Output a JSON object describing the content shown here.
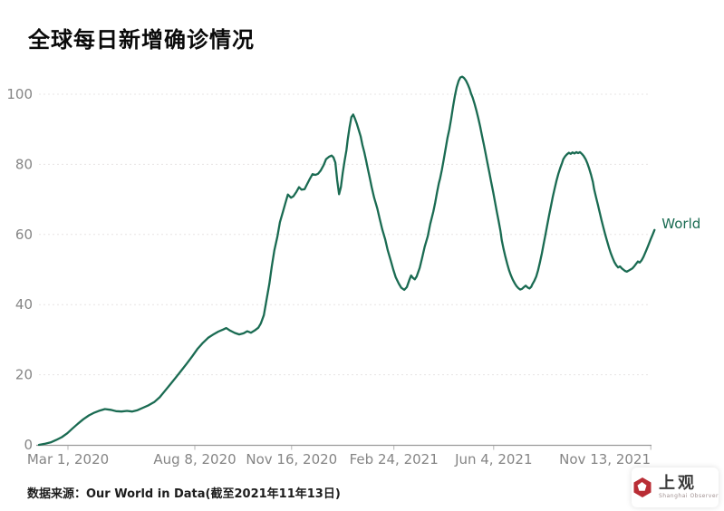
{
  "title": "全球每日新增确诊情况",
  "source_note": "数据来源：Our World in Data(截至2021年11年13日)",
  "logo": {
    "name": "上观",
    "subtitle": "Shanghai Observer",
    "color": "#b92d35"
  },
  "chart_data": {
    "type": "line",
    "title": "全球每日新增确诊情况",
    "xlabel": "",
    "ylabel": "",
    "ylim": [
      0,
      110
    ],
    "yticks": [
      0,
      20,
      40,
      60,
      80,
      100
    ],
    "grid": "horizontal-dashed",
    "legend": "end-of-line-label",
    "x_axis_ticks": [
      {
        "label": "Mar 1, 2020",
        "f": 0.047
      },
      {
        "label": "Aug 8, 2020",
        "f": 0.253
      },
      {
        "label": "Nov 16, 2020",
        "f": 0.41
      },
      {
        "label": "Feb 24, 2021",
        "f": 0.576
      },
      {
        "label": "Jun 4, 2021",
        "f": 0.738
      },
      {
        "label": "Nov 13, 2021",
        "f": 0.993
      }
    ],
    "series": [
      {
        "name": "World",
        "color": "#1a6b52",
        "points": [
          [
            0,
            0
          ],
          [
            0.01,
            0.3
          ],
          [
            0.019,
            0.7
          ],
          [
            0.028,
            1.4
          ],
          [
            0.037,
            2.2
          ],
          [
            0.046,
            3.3
          ],
          [
            0.054,
            4.6
          ],
          [
            0.063,
            6
          ],
          [
            0.072,
            7.3
          ],
          [
            0.081,
            8.4
          ],
          [
            0.09,
            9.2
          ],
          [
            0.099,
            9.8
          ],
          [
            0.107,
            10.2
          ],
          [
            0.116,
            10
          ],
          [
            0.125,
            9.6
          ],
          [
            0.134,
            9.5
          ],
          [
            0.143,
            9.7
          ],
          [
            0.151,
            9.5
          ],
          [
            0.16,
            9.9
          ],
          [
            0.169,
            10.6
          ],
          [
            0.178,
            11.3
          ],
          [
            0.187,
            12.2
          ],
          [
            0.196,
            13.6
          ],
          [
            0.204,
            15.3
          ],
          [
            0.213,
            17.2
          ],
          [
            0.222,
            19.2
          ],
          [
            0.231,
            21.2
          ],
          [
            0.24,
            23.2
          ],
          [
            0.249,
            25.3
          ],
          [
            0.257,
            27.3
          ],
          [
            0.266,
            29.1
          ],
          [
            0.275,
            30.6
          ],
          [
            0.284,
            31.6
          ],
          [
            0.291,
            32.3
          ],
          [
            0.299,
            32.9
          ],
          [
            0.304,
            33.3
          ],
          [
            0.31,
            32.6
          ],
          [
            0.318,
            31.9
          ],
          [
            0.325,
            31.5
          ],
          [
            0.332,
            31.8
          ],
          [
            0.338,
            32.4
          ],
          [
            0.344,
            32
          ],
          [
            0.35,
            32.6
          ],
          [
            0.356,
            33.4
          ],
          [
            0.36,
            34.6
          ],
          [
            0.365,
            37
          ],
          [
            0.369,
            41
          ],
          [
            0.374,
            46
          ],
          [
            0.378,
            51
          ],
          [
            0.382,
            55.5
          ],
          [
            0.387,
            59.5
          ],
          [
            0.391,
            63.5
          ],
          [
            0.396,
            66.5
          ],
          [
            0.4,
            69
          ],
          [
            0.404,
            71.4
          ],
          [
            0.409,
            70.5
          ],
          [
            0.413,
            70.9
          ],
          [
            0.418,
            72.2
          ],
          [
            0.422,
            73.5
          ],
          [
            0.426,
            72.8
          ],
          [
            0.431,
            72.9
          ],
          [
            0.435,
            74.3
          ],
          [
            0.44,
            76
          ],
          [
            0.444,
            77.2
          ],
          [
            0.449,
            77
          ],
          [
            0.453,
            77.3
          ],
          [
            0.457,
            78.2
          ],
          [
            0.462,
            79.8
          ],
          [
            0.466,
            81.5
          ],
          [
            0.471,
            82.2
          ],
          [
            0.475,
            82.5
          ],
          [
            0.478,
            82
          ],
          [
            0.481,
            80.5
          ],
          [
            0.484,
            75.5
          ],
          [
            0.487,
            71.5
          ],
          [
            0.49,
            73.5
          ],
          [
            0.493,
            77.5
          ],
          [
            0.496,
            81
          ],
          [
            0.499,
            84
          ],
          [
            0.501,
            87
          ],
          [
            0.504,
            90.5
          ],
          [
            0.507,
            93.5
          ],
          [
            0.51,
            94.2
          ],
          [
            0.513,
            93
          ],
          [
            0.516,
            91.5
          ],
          [
            0.519,
            89.8
          ],
          [
            0.522,
            88
          ],
          [
            0.525,
            85.5
          ],
          [
            0.528,
            83.5
          ],
          [
            0.531,
            81
          ],
          [
            0.534,
            78.5
          ],
          [
            0.537,
            76
          ],
          [
            0.54,
            73.5
          ],
          [
            0.544,
            70.5
          ],
          [
            0.549,
            67.5
          ],
          [
            0.553,
            64.5
          ],
          [
            0.557,
            61.5
          ],
          [
            0.562,
            58.5
          ],
          [
            0.566,
            55.5
          ],
          [
            0.571,
            52.5
          ],
          [
            0.575,
            50
          ],
          [
            0.579,
            47.8
          ],
          [
            0.584,
            46
          ],
          [
            0.588,
            44.8
          ],
          [
            0.593,
            44.2
          ],
          [
            0.597,
            45
          ],
          [
            0.601,
            47
          ],
          [
            0.604,
            48.3
          ],
          [
            0.607,
            47.6
          ],
          [
            0.61,
            47.2
          ],
          [
            0.613,
            48
          ],
          [
            0.618,
            50.5
          ],
          [
            0.622,
            53.5
          ],
          [
            0.626,
            56.5
          ],
          [
            0.631,
            59.5
          ],
          [
            0.635,
            63
          ],
          [
            0.64,
            66.5
          ],
          [
            0.643,
            69
          ],
          [
            0.646,
            72
          ],
          [
            0.649,
            74.6
          ],
          [
            0.651,
            76
          ],
          [
            0.654,
            78.5
          ],
          [
            0.657,
            81.5
          ],
          [
            0.66,
            84.5
          ],
          [
            0.663,
            87.5
          ],
          [
            0.666,
            90
          ],
          [
            0.669,
            93
          ],
          [
            0.672,
            96.5
          ],
          [
            0.675,
            99.5
          ],
          [
            0.678,
            102
          ],
          [
            0.681,
            103.8
          ],
          [
            0.684,
            104.8
          ],
          [
            0.687,
            105
          ],
          [
            0.69,
            104.6
          ],
          [
            0.693,
            103.9
          ],
          [
            0.696,
            102.8
          ],
          [
            0.699,
            101.5
          ],
          [
            0.701,
            100.3
          ],
          [
            0.704,
            99
          ],
          [
            0.707,
            97.2
          ],
          [
            0.71,
            95.3
          ],
          [
            0.713,
            93.2
          ],
          [
            0.716,
            90.8
          ],
          [
            0.719,
            88.2
          ],
          [
            0.722,
            85.6
          ],
          [
            0.725,
            83
          ],
          [
            0.728,
            80.3
          ],
          [
            0.731,
            77.6
          ],
          [
            0.734,
            74.9
          ],
          [
            0.737,
            72.2
          ],
          [
            0.74,
            69.4
          ],
          [
            0.743,
            66.6
          ],
          [
            0.746,
            63.8
          ],
          [
            0.749,
            61
          ],
          [
            0.751,
            58.4
          ],
          [
            0.754,
            55.9
          ],
          [
            0.757,
            53.6
          ],
          [
            0.76,
            51.6
          ],
          [
            0.763,
            49.8
          ],
          [
            0.766,
            48.3
          ],
          [
            0.769,
            47.1
          ],
          [
            0.772,
            46.1
          ],
          [
            0.775,
            45.3
          ],
          [
            0.778,
            44.7
          ],
          [
            0.781,
            44.3
          ],
          [
            0.784,
            44.5
          ],
          [
            0.787,
            45
          ],
          [
            0.79,
            45.4
          ],
          [
            0.793,
            44.9
          ],
          [
            0.796,
            44.6
          ],
          [
            0.799,
            45.1
          ],
          [
            0.801,
            45.9
          ],
          [
            0.804,
            46.8
          ],
          [
            0.807,
            48
          ],
          [
            0.81,
            49.8
          ],
          [
            0.813,
            52
          ],
          [
            0.816,
            54.5
          ],
          [
            0.819,
            57.2
          ],
          [
            0.822,
            60
          ],
          [
            0.825,
            62.8
          ],
          [
            0.828,
            65.5
          ],
          [
            0.831,
            68.2
          ],
          [
            0.834,
            70.8
          ],
          [
            0.837,
            73.2
          ],
          [
            0.84,
            75.4
          ],
          [
            0.843,
            77.3
          ],
          [
            0.846,
            79
          ],
          [
            0.849,
            80.4
          ],
          [
            0.851,
            81.5
          ],
          [
            0.854,
            82.3
          ],
          [
            0.857,
            82.9
          ],
          [
            0.86,
            83.3
          ],
          [
            0.863,
            83
          ],
          [
            0.866,
            83.4
          ],
          [
            0.869,
            83.1
          ],
          [
            0.872,
            83.5
          ],
          [
            0.875,
            83.2
          ],
          [
            0.878,
            83.5
          ],
          [
            0.881,
            83
          ],
          [
            0.884,
            82.4
          ],
          [
            0.887,
            81.5
          ],
          [
            0.89,
            80.3
          ],
          [
            0.893,
            78.8
          ],
          [
            0.896,
            77
          ],
          [
            0.899,
            75
          ],
          [
            0.901,
            72.9
          ],
          [
            0.904,
            70.7
          ],
          [
            0.907,
            68.5
          ],
          [
            0.91,
            66.3
          ],
          [
            0.913,
            64.1
          ],
          [
            0.916,
            62
          ],
          [
            0.919,
            60
          ],
          [
            0.922,
            58.1
          ],
          [
            0.925,
            56.3
          ],
          [
            0.928,
            54.7
          ],
          [
            0.931,
            53.3
          ],
          [
            0.934,
            52.1
          ],
          [
            0.937,
            51.2
          ],
          [
            0.94,
            50.6
          ],
          [
            0.943,
            50.9
          ],
          [
            0.946,
            50.3
          ],
          [
            0.949,
            49.9
          ],
          [
            0.951,
            49.6
          ],
          [
            0.954,
            49.4
          ],
          [
            0.957,
            49.7
          ],
          [
            0.96,
            50
          ],
          [
            0.963,
            50.3
          ],
          [
            0.966,
            50.9
          ],
          [
            0.969,
            51.6
          ],
          [
            0.972,
            52.3
          ],
          [
            0.975,
            52
          ],
          [
            0.978,
            52.6
          ],
          [
            0.981,
            53.6
          ],
          [
            0.984,
            54.8
          ],
          [
            0.987,
            56.1
          ],
          [
            0.99,
            57.4
          ],
          [
            0.993,
            58.7
          ],
          [
            0.996,
            60
          ],
          [
            0.999,
            61.3
          ]
        ]
      }
    ]
  }
}
